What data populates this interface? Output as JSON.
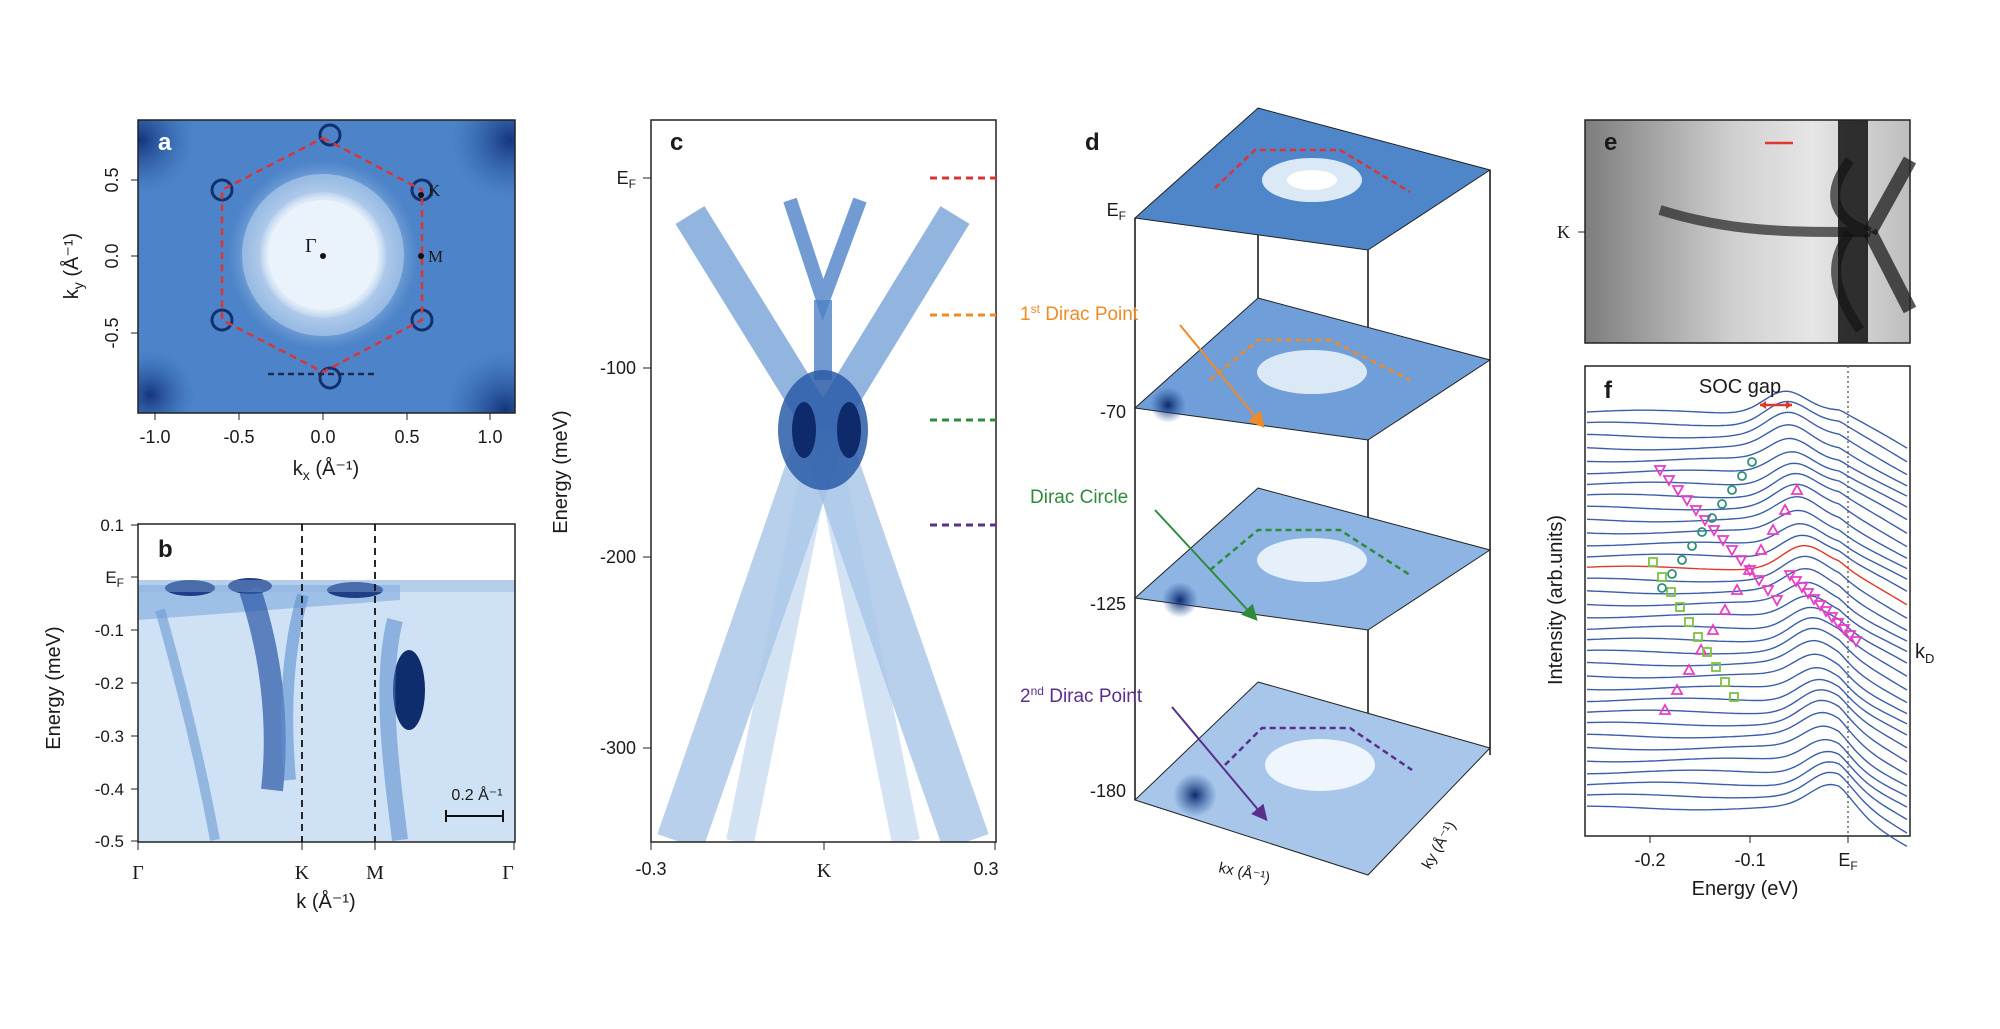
{
  "panels": {
    "a": {
      "label": "a",
      "xticks": [
        "-1.0",
        "-0.5",
        "0.0",
        "0.5",
        "1.0"
      ],
      "yticks": [
        "0.5",
        "0.0",
        "-0.5"
      ],
      "xlabel_main": "k",
      "xlabel_sub": "x",
      "xlabel_unit": " (Å⁻¹)",
      "ylabel_main": "k",
      "ylabel_sub": "y",
      "ylabel_unit": " (Å⁻¹)",
      "points": {
        "gamma": "Γ",
        "k": "K",
        "m": "M"
      }
    },
    "b": {
      "label": "b",
      "yticks": [
        "0.1",
        "-0.1",
        "-0.2",
        "-0.3",
        "-0.4",
        "-0.5"
      ],
      "ef_main": "E",
      "ef_sub": "F",
      "xticks": [
        "Γ",
        "K",
        "M",
        "Γ"
      ],
      "xlabel": "k (Å⁻¹)",
      "ylabel": "Energy (meV)",
      "scalebar": "0.2 Å⁻¹"
    },
    "c": {
      "label": "c",
      "ef_main": "E",
      "ef_sub": "F",
      "yticks": [
        "-100",
        "-200",
        "-300"
      ],
      "xticks": [
        "-0.3",
        "K",
        "0.3"
      ],
      "ylabel": "Energy (meV)",
      "cut_colors": [
        "#d93535",
        "#f08a24",
        "#2e8b3c",
        "#5a2f8c"
      ]
    },
    "d": {
      "label": "d",
      "ef_main": "E",
      "ef_sub": "F",
      "energies": [
        "-70",
        "-125",
        "-180"
      ],
      "ann1_sup": "st",
      "ann1_pre": "1",
      "ann1_text": " Dirac Point",
      "ann2_text": "Dirac Circle",
      "ann3_sup": "nd",
      "ann3_pre": "2",
      "ann3_text": " Dirac Point",
      "kx_label": "kx (Å⁻¹)",
      "ky_label": "ky (Å⁻¹)"
    },
    "e": {
      "label": "e",
      "ylabel": "K"
    },
    "f": {
      "label": "f",
      "soc": "SOC gap",
      "xticks": [
        "-0.2",
        "-0.1"
      ],
      "ef_main": "E",
      "ef_sub": "F",
      "xlabel": "Energy (eV)",
      "ylabel": "Intensity (arb.units)",
      "kd_main": "k",
      "kd_sub": "D"
    }
  },
  "colors": {
    "map_dark": "#1a3f8f",
    "map_mid": "#4f86c9",
    "map_light": "#e7f1fb",
    "mdc": "#3b5ea8",
    "kd_curve": "#e0392b",
    "marker_pink": "#e63ec6",
    "marker_green": "#7dc242",
    "marker_teal": "#2f8f7a"
  }
}
